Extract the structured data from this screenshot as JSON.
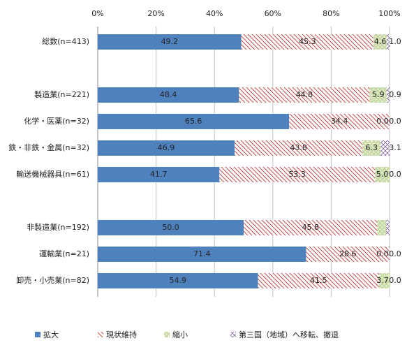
{
  "chart_data": {
    "type": "stacked-bar-horizontal",
    "categories": [
      "総数(n=413)",
      null,
      "製造業(n=221)",
      "化学・医薬(n=32)",
      "鉄・非鉄・金属(n=32)",
      "輸送機械器具(n=61)",
      null,
      "非製造業(n=192)",
      "運輸業(n=21)",
      "卸売・小売業(n=82)"
    ],
    "series": [
      {
        "name": "拡大",
        "color": "#4f81bd",
        "values": [
          49.2,
          null,
          48.4,
          65.6,
          46.9,
          41.7,
          null,
          50.0,
          71.4,
          54.9
        ],
        "value_labels": [
          "49.2",
          null,
          "48.4",
          "65.6",
          "46.9",
          "41.7",
          null,
          "50.0",
          "71.4",
          "54.9"
        ]
      },
      {
        "name": "現状維持",
        "color": "#c0504d",
        "values": [
          45.3,
          null,
          44.8,
          34.4,
          43.8,
          53.3,
          null,
          45.8,
          28.6,
          41.5
        ],
        "value_labels": [
          "45.3",
          null,
          "44.8",
          "34.4",
          "43.8",
          "53.3",
          null,
          "45.8",
          "28.6",
          "41.5"
        ]
      },
      {
        "name": "縮小",
        "color": "#9bbb59",
        "values": [
          4.6,
          null,
          5.9,
          0.0,
          6.3,
          5.0,
          null,
          3.0,
          0.0,
          3.7
        ],
        "value_labels": [
          "4.6",
          null,
          "5.9",
          "0.0",
          "6.3",
          "5.0",
          null,
          null,
          "0.0",
          "3.7"
        ]
      },
      {
        "name": "第三国（地域）へ移転、撤退",
        "color": "#8064a2",
        "values": [
          1.0,
          null,
          0.9,
          0.0,
          3.1,
          0.0,
          null,
          1.2,
          0.0,
          0.0
        ],
        "value_labels": [
          "1.0",
          null,
          "0.9",
          "0.0",
          "3.1",
          "0.0",
          null,
          null,
          "0.0",
          "0.0"
        ]
      }
    ],
    "xlim": [
      0,
      100
    ],
    "xticks": [
      {
        "value": 0,
        "label": "0%"
      },
      {
        "value": 20,
        "label": "20%"
      },
      {
        "value": 40,
        "label": "40%"
      },
      {
        "value": 60,
        "label": "60%"
      },
      {
        "value": 80,
        "label": "80%"
      },
      {
        "value": 100,
        "label": "100%"
      }
    ],
    "grid": true
  }
}
